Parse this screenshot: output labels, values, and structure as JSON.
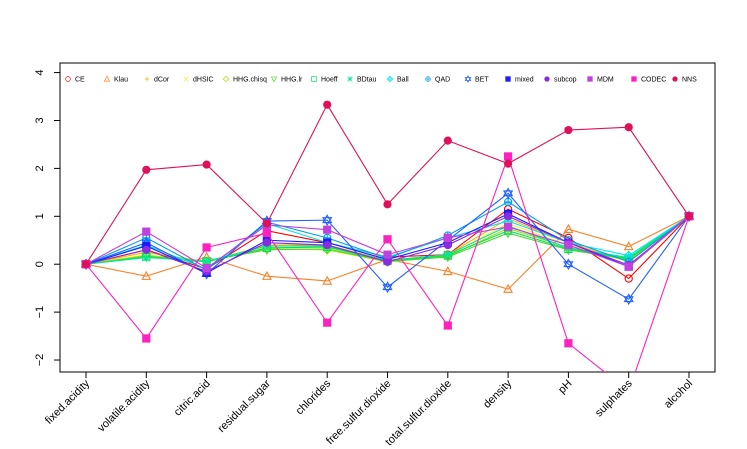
{
  "chart_data": {
    "type": "line",
    "title": "",
    "xlabel": "",
    "ylabel": "",
    "ylim": [
      -2.25,
      4.2
    ],
    "yticks": [
      -2,
      -1,
      0,
      1,
      2,
      3,
      4
    ],
    "grid": false,
    "legend_position": "top",
    "categories": [
      "fixed.acidity",
      "volatile.acidity",
      "citric.acid",
      "residual.sugar",
      "chlorides",
      "free.sulfur.dioxide",
      "total.sulfur.dioxide",
      "density",
      "pH",
      "sulphates",
      "alcohol"
    ],
    "series": [
      {
        "name": "CE",
        "color": "#FF0000",
        "marker": "circle",
        "values": [
          0.0,
          0.3,
          -0.1,
          0.7,
          0.45,
          0.15,
          0.2,
          1.15,
          0.55,
          -0.3,
          1.0
        ]
      },
      {
        "name": "Klau",
        "color": "#FF7F27",
        "marker": "triangle",
        "values": [
          0.0,
          -0.25,
          0.15,
          -0.25,
          -0.35,
          0.1,
          -0.15,
          -0.52,
          0.73,
          0.37,
          1.0
        ]
      },
      {
        "name": "dCor",
        "color": "#FFB300",
        "marker": "plus",
        "values": [
          0.0,
          0.25,
          0.05,
          0.4,
          0.4,
          0.08,
          0.2,
          0.95,
          0.45,
          0.05,
          1.0
        ]
      },
      {
        "name": "dHSIC",
        "color": "#FFEB3B",
        "marker": "cross",
        "values": [
          0.0,
          0.2,
          0.05,
          0.35,
          0.35,
          0.05,
          0.18,
          0.85,
          0.4,
          0.05,
          1.0
        ]
      },
      {
        "name": "HHG.chisq",
        "color": "#A0E000",
        "marker": "diamond",
        "values": [
          0.0,
          0.18,
          0.06,
          0.32,
          0.3,
          0.05,
          0.16,
          0.75,
          0.35,
          0.08,
          1.0
        ]
      },
      {
        "name": "HHG.lr",
        "color": "#4CDB2C",
        "marker": "triangle-down",
        "values": [
          0.0,
          0.15,
          0.07,
          0.3,
          0.32,
          0.06,
          0.15,
          0.65,
          0.3,
          0.1,
          1.0
        ]
      },
      {
        "name": "Hoeff",
        "color": "#00E060",
        "marker": "square",
        "values": [
          0.0,
          0.16,
          0.05,
          0.34,
          0.36,
          0.07,
          0.18,
          0.7,
          0.32,
          0.12,
          1.0
        ]
      },
      {
        "name": "BDtau",
        "color": "#00E8A0",
        "marker": "star",
        "values": [
          0.0,
          0.14,
          0.06,
          0.38,
          0.38,
          0.08,
          0.2,
          0.8,
          0.34,
          0.14,
          1.0
        ]
      },
      {
        "name": "Ball",
        "color": "#00E5E5",
        "marker": "diamond-plus",
        "values": [
          0.0,
          0.4,
          -0.1,
          0.85,
          0.45,
          0.15,
          0.55,
          0.9,
          0.45,
          0.18,
          1.0
        ]
      },
      {
        "name": "QAD",
        "color": "#00A0F0",
        "marker": "circle-plus",
        "values": [
          0.0,
          0.55,
          -0.12,
          0.88,
          0.55,
          0.12,
          0.6,
          1.3,
          0.5,
          0.05,
          1.0
        ]
      },
      {
        "name": "BET",
        "color": "#2060FF",
        "marker": "star-of-david",
        "values": [
          0.0,
          0.45,
          -0.2,
          0.9,
          0.92,
          -0.48,
          0.5,
          1.48,
          0.0,
          -0.73,
          1.0
        ]
      },
      {
        "name": "mixed",
        "color": "#1A1AFF",
        "marker": "filled-square",
        "values": [
          0.0,
          0.38,
          -0.18,
          0.5,
          0.45,
          0.1,
          0.45,
          1.05,
          0.45,
          -0.05,
          1.0
        ]
      },
      {
        "name": "subcop",
        "color": "#8A2BE2",
        "marker": "filled-circle",
        "values": [
          0.0,
          0.3,
          -0.15,
          0.45,
          0.4,
          0.05,
          0.4,
          1.0,
          0.45,
          -0.02,
          1.0
        ]
      },
      {
        "name": "MDM",
        "color": "#C040E0",
        "marker": "filled-square",
        "values": [
          0.0,
          0.68,
          -0.08,
          0.82,
          0.72,
          0.2,
          0.55,
          0.78,
          0.4,
          -0.05,
          1.0
        ]
      },
      {
        "name": "CODEC",
        "color": "#FF20C0",
        "marker": "filled-square",
        "values": [
          0.0,
          -1.55,
          0.35,
          0.65,
          -1.22,
          0.52,
          -1.28,
          2.25,
          -1.65,
          -2.65,
          1.0
        ]
      },
      {
        "name": "NNS",
        "color": "#E0105A",
        "marker": "filled-circle",
        "values": [
          0.0,
          1.97,
          2.08,
          0.85,
          3.33,
          1.25,
          2.58,
          2.1,
          2.8,
          2.86,
          1.0
        ]
      }
    ]
  }
}
